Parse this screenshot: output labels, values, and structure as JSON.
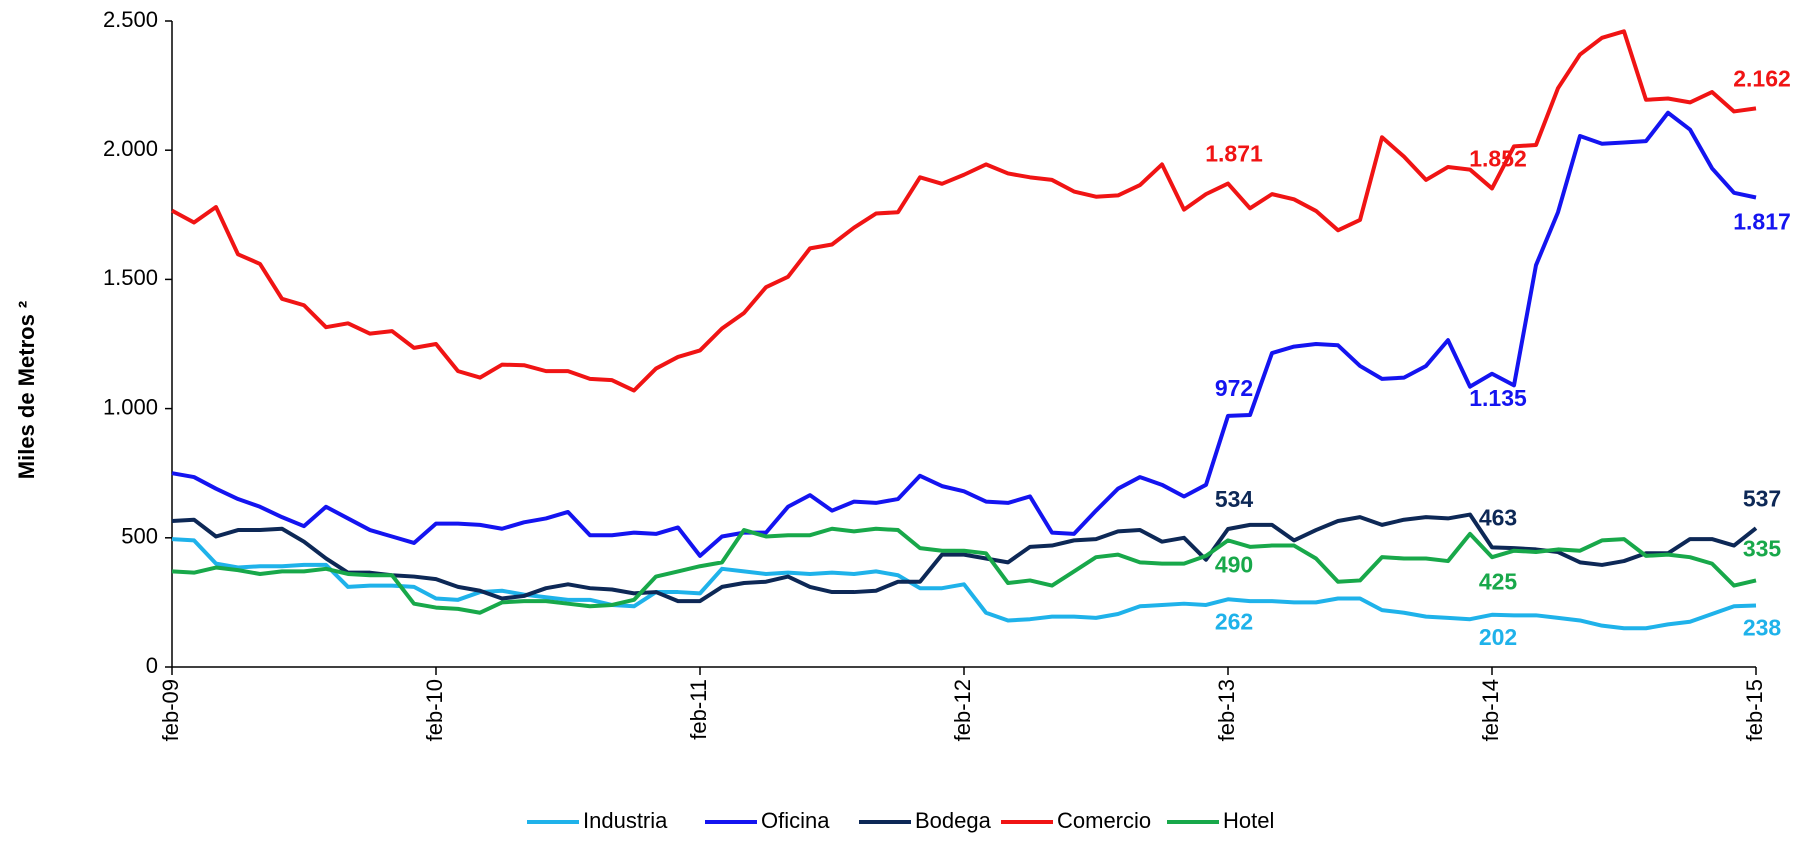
{
  "chart_data": {
    "type": "line",
    "y_label": "Miles de Metros ²",
    "categories": [
      "feb-09",
      null,
      null,
      null,
      null,
      null,
      null,
      null,
      null,
      null,
      null,
      null,
      "feb-10",
      null,
      null,
      null,
      null,
      null,
      null,
      null,
      null,
      null,
      null,
      null,
      "feb-11",
      null,
      null,
      null,
      null,
      null,
      null,
      null,
      null,
      null,
      null,
      null,
      "feb-12",
      null,
      null,
      null,
      null,
      null,
      null,
      null,
      null,
      null,
      null,
      null,
      "feb-13",
      null,
      null,
      null,
      null,
      null,
      null,
      null,
      null,
      null,
      null,
      null,
      "feb-14",
      null,
      null,
      null,
      null,
      null,
      null,
      null,
      null,
      null,
      null,
      null,
      "feb-15"
    ],
    "ylim": [
      0,
      2500
    ],
    "yticks": [
      0,
      500,
      {
        "value": 1000,
        "label": "1.000"
      },
      {
        "value": 1500,
        "label": "1.500"
      },
      {
        "value": 2000,
        "label": "2.000"
      },
      {
        "value": 2500,
        "label": "2.500"
      }
    ],
    "legend": "bottom",
    "series": [
      {
        "name": "Industria",
        "color": "#1fb2ea",
        "values": [
          495,
          490,
          400,
          385,
          390,
          390,
          395,
          395,
          310,
          315,
          315,
          310,
          265,
          260,
          290,
          295,
          280,
          270,
          260,
          260,
          240,
          235,
          290,
          290,
          285,
          380,
          370,
          360,
          365,
          360,
          365,
          360,
          370,
          355,
          305,
          305,
          320,
          210,
          180,
          185,
          195,
          195,
          190,
          205,
          235,
          240,
          245,
          240,
          262,
          255,
          255,
          250,
          250,
          265,
          265,
          220,
          210,
          195,
          190,
          185,
          202,
          200,
          200,
          190,
          180,
          160,
          150,
          150,
          165,
          175,
          205,
          235,
          238
        ],
        "value_labels": [
          null,
          null,
          null,
          null,
          null,
          null,
          null,
          null,
          null,
          null,
          null,
          null,
          null,
          null,
          null,
          null,
          null,
          null,
          null,
          null,
          null,
          null,
          null,
          null,
          null,
          null,
          null,
          null,
          null,
          null,
          null,
          null,
          null,
          null,
          null,
          null,
          null,
          null,
          null,
          null,
          null,
          null,
          null,
          null,
          null,
          null,
          null,
          null,
          "262",
          null,
          null,
          null,
          null,
          null,
          null,
          null,
          null,
          null,
          null,
          null,
          "202",
          null,
          null,
          null,
          null,
          null,
          null,
          null,
          null,
          null,
          null,
          null,
          "238"
        ]
      },
      {
        "name": "Oficina",
        "color": "#1414f0",
        "values": [
          750,
          735,
          690,
          650,
          620,
          580,
          545,
          620,
          575,
          530,
          505,
          480,
          555,
          555,
          550,
          535,
          560,
          575,
          600,
          510,
          510,
          520,
          515,
          540,
          430,
          505,
          520,
          520,
          620,
          665,
          605,
          640,
          635,
          650,
          740,
          700,
          680,
          640,
          635,
          660,
          520,
          515,
          605,
          690,
          735,
          705,
          660,
          705,
          972,
          975,
          1215,
          1240,
          1250,
          1245,
          1165,
          1115,
          1120,
          1165,
          1265,
          1085,
          1135,
          1090,
          1555,
          1760,
          2055,
          2025,
          2030,
          2035,
          2145,
          2080,
          1930,
          1835,
          1817
        ],
        "value_labels": [
          null,
          null,
          null,
          null,
          null,
          null,
          null,
          null,
          null,
          null,
          null,
          null,
          null,
          null,
          null,
          null,
          null,
          null,
          null,
          null,
          null,
          null,
          null,
          null,
          null,
          null,
          null,
          null,
          null,
          null,
          null,
          null,
          null,
          null,
          null,
          null,
          null,
          null,
          null,
          null,
          null,
          null,
          null,
          null,
          null,
          null,
          null,
          null,
          "972",
          null,
          null,
          null,
          null,
          null,
          null,
          null,
          null,
          null,
          null,
          null,
          "1.135",
          null,
          null,
          null,
          null,
          null,
          null,
          null,
          null,
          null,
          null,
          null,
          "1.817"
        ]
      },
      {
        "name": "Bodega",
        "color": "#0d2856",
        "values": [
          565,
          570,
          505,
          530,
          530,
          535,
          485,
          420,
          365,
          365,
          355,
          350,
          340,
          310,
          295,
          265,
          275,
          305,
          320,
          305,
          300,
          285,
          290,
          255,
          255,
          310,
          325,
          330,
          350,
          310,
          290,
          290,
          295,
          330,
          330,
          435,
          435,
          420,
          405,
          465,
          470,
          490,
          495,
          525,
          530,
          485,
          500,
          415,
          534,
          550,
          550,
          490,
          530,
          565,
          580,
          550,
          570,
          580,
          575,
          590,
          463,
          460,
          455,
          445,
          405,
          395,
          410,
          440,
          440,
          495,
          495,
          470,
          537
        ],
        "value_labels": [
          null,
          null,
          null,
          null,
          null,
          null,
          null,
          null,
          null,
          null,
          null,
          null,
          null,
          null,
          null,
          null,
          null,
          null,
          null,
          null,
          null,
          null,
          null,
          null,
          null,
          null,
          null,
          null,
          null,
          null,
          null,
          null,
          null,
          null,
          null,
          null,
          null,
          null,
          null,
          null,
          null,
          null,
          null,
          null,
          null,
          null,
          null,
          null,
          "534",
          null,
          null,
          null,
          null,
          null,
          null,
          null,
          null,
          null,
          null,
          null,
          "463",
          null,
          null,
          null,
          null,
          null,
          null,
          null,
          null,
          null,
          null,
          null,
          "537"
        ]
      },
      {
        "name": "Comercio",
        "color": "#f01414",
        "values": [
          1766,
          1720,
          1780,
          1597,
          1560,
          1425,
          1400,
          1315,
          1330,
          1290,
          1300,
          1235,
          1250,
          1145,
          1120,
          1170,
          1168,
          1145,
          1145,
          1115,
          1110,
          1070,
          1155,
          1200,
          1225,
          1310,
          1370,
          1470,
          1510,
          1620,
          1635,
          1700,
          1755,
          1760,
          1895,
          1870,
          1905,
          1945,
          1910,
          1895,
          1885,
          1840,
          1820,
          1825,
          1865,
          1945,
          1770,
          1830,
          1871,
          1775,
          1830,
          1810,
          1765,
          1690,
          1730,
          2050,
          1975,
          1885,
          1935,
          1925,
          1852,
          2015,
          2020,
          2240,
          2370,
          2435,
          2460,
          2195,
          2200,
          2185,
          2225,
          2150,
          2162
        ],
        "value_labels": [
          null,
          null,
          null,
          null,
          null,
          null,
          null,
          null,
          null,
          null,
          null,
          null,
          null,
          null,
          null,
          null,
          null,
          null,
          null,
          null,
          null,
          null,
          null,
          null,
          null,
          null,
          null,
          null,
          null,
          null,
          null,
          null,
          null,
          null,
          null,
          null,
          null,
          null,
          null,
          null,
          null,
          null,
          null,
          null,
          null,
          null,
          null,
          null,
          "1.871",
          null,
          null,
          null,
          null,
          null,
          null,
          null,
          null,
          null,
          null,
          null,
          "1.852",
          null,
          null,
          null,
          null,
          null,
          null,
          null,
          null,
          null,
          null,
          null,
          "2.162"
        ]
      },
      {
        "name": "Hotel",
        "color": "#18a84a",
        "values": [
          370,
          365,
          385,
          375,
          360,
          370,
          370,
          380,
          360,
          355,
          355,
          245,
          230,
          225,
          210,
          250,
          255,
          255,
          245,
          235,
          240,
          260,
          350,
          370,
          390,
          405,
          530,
          505,
          510,
          510,
          535,
          525,
          535,
          530,
          460,
          450,
          450,
          440,
          325,
          335,
          315,
          370,
          425,
          435,
          405,
          400,
          400,
          430,
          490,
          465,
          470,
          470,
          420,
          330,
          335,
          425,
          420,
          420,
          410,
          515,
          425,
          450,
          445,
          455,
          450,
          490,
          495,
          430,
          435,
          425,
          400,
          315,
          335
        ],
        "value_labels": [
          null,
          null,
          null,
          null,
          null,
          null,
          null,
          null,
          null,
          null,
          null,
          null,
          null,
          null,
          null,
          null,
          null,
          null,
          null,
          null,
          null,
          null,
          null,
          null,
          null,
          null,
          null,
          null,
          null,
          null,
          null,
          null,
          null,
          null,
          null,
          null,
          null,
          null,
          null,
          null,
          null,
          null,
          null,
          null,
          null,
          null,
          null,
          null,
          "490",
          null,
          null,
          null,
          null,
          null,
          null,
          null,
          null,
          null,
          null,
          null,
          "425",
          null,
          null,
          null,
          null,
          null,
          null,
          null,
          null,
          null,
          null,
          null,
          "335"
        ]
      }
    ]
  }
}
